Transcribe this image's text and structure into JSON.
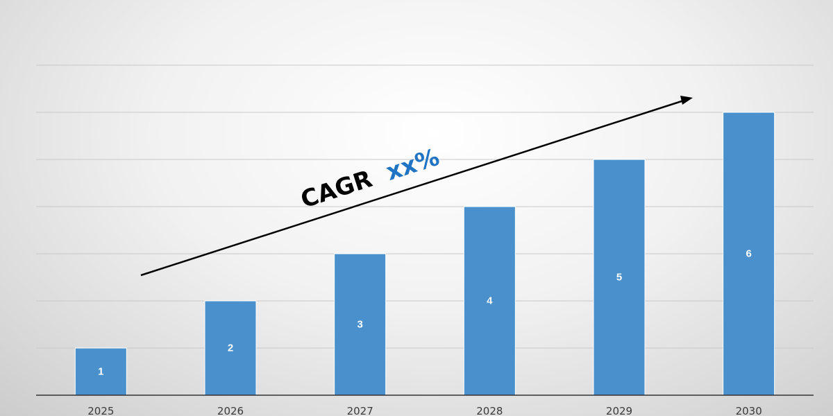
{
  "chart_data": {
    "type": "bar",
    "title": "",
    "xlabel": "",
    "ylabel": "",
    "categories": [
      "2025",
      "2026",
      "2027",
      "2028",
      "2029",
      "2030"
    ],
    "values": [
      1,
      2,
      3,
      4,
      5,
      6
    ],
    "data_labels": [
      "1",
      "2",
      "3",
      "4",
      "5",
      "6"
    ],
    "ylim": [
      0,
      7.5
    ],
    "grid_step": 1,
    "grid": true,
    "legend": "none",
    "bar_color": "#4a90cc",
    "annotation": {
      "label": "CAGR",
      "value": "xx%",
      "label_color": "#000000",
      "value_color": "#1f74c4",
      "arrow": "trend-up"
    }
  }
}
